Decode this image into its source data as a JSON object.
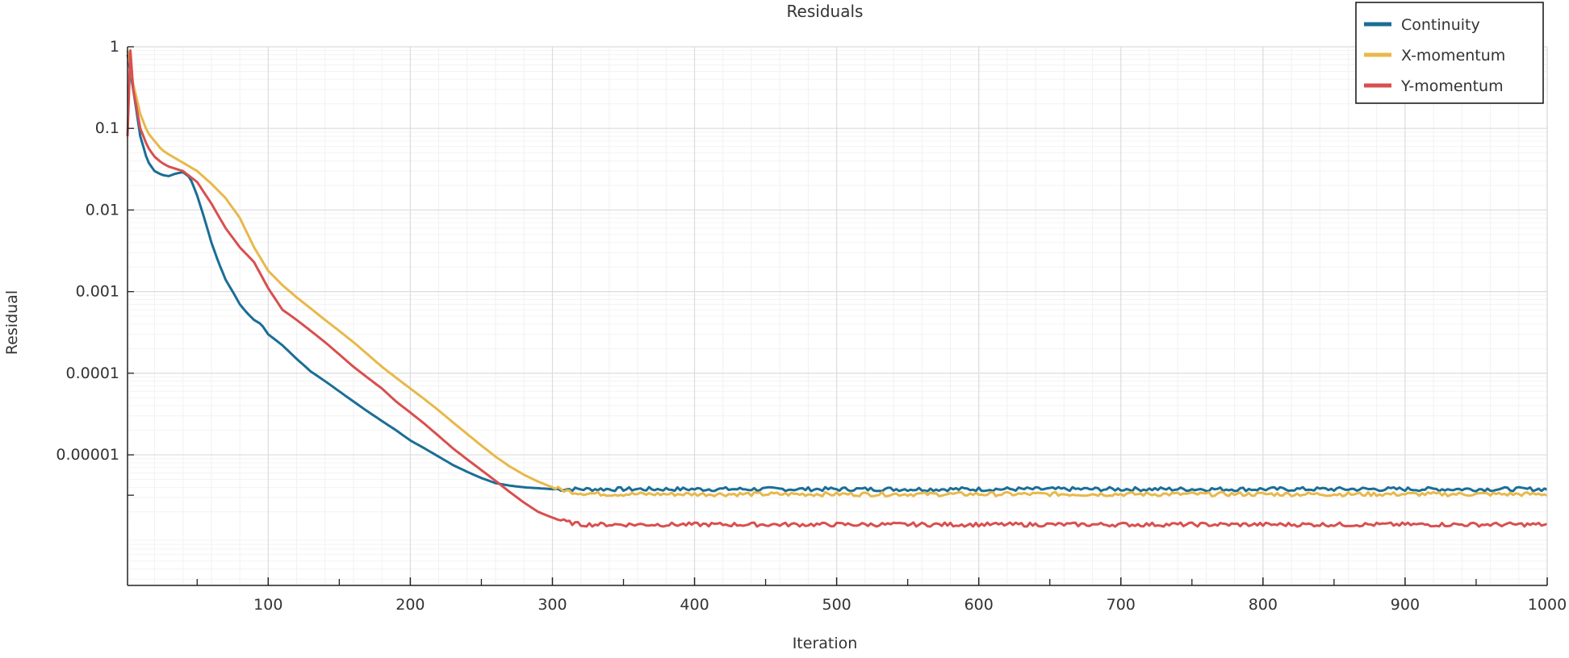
{
  "chart_data": {
    "type": "line",
    "title": "Residuals",
    "xlabel": "Iteration",
    "ylabel": "Residual",
    "xlim": [
      1,
      1000
    ],
    "ylim_log10": [
      -6.6,
      0
    ],
    "yscale": "log",
    "grid": true,
    "legend_position": "top-right",
    "x_ticks": [
      100,
      200,
      300,
      400,
      500,
      600,
      700,
      800,
      900,
      1000
    ],
    "x_tick_labels": [
      "100",
      "200",
      "300",
      "400",
      "500",
      "600",
      "700",
      "800",
      "900",
      "1000"
    ],
    "y_ticks": [
      1,
      0.1,
      0.01,
      0.001,
      0.0001,
      1e-05
    ],
    "y_tick_labels": [
      "1",
      "0.1",
      "0.01",
      "0.001",
      "0.0001",
      "0.00001"
    ],
    "series": [
      {
        "name": "Continuity",
        "color": "#1a6e96",
        "x": [
          1,
          5,
          10,
          15,
          20,
          25,
          30,
          35,
          40,
          45,
          50,
          55,
          60,
          65,
          70,
          75,
          80,
          85,
          90,
          95,
          100,
          110,
          120,
          130,
          140,
          150,
          160,
          170,
          180,
          190,
          200,
          210,
          220,
          230,
          240,
          250,
          260,
          270,
          280,
          290,
          300,
          320,
          340,
          360,
          400,
          450,
          500,
          550,
          600,
          650,
          700,
          750,
          800,
          850,
          900,
          950,
          1000
        ],
        "y": [
          0.8,
          0.3,
          0.08,
          0.04,
          0.03,
          0.027,
          0.026,
          0.028,
          0.029,
          0.025,
          0.015,
          0.008,
          0.004,
          0.0023,
          0.0014,
          0.001,
          0.0007,
          0.00055,
          0.00045,
          0.0004,
          0.0003,
          0.00022,
          0.00015,
          0.000105,
          8e-05,
          6e-05,
          4.5e-05,
          3.4e-05,
          2.6e-05,
          2e-05,
          1.5e-05,
          1.2e-05,
          9.5e-06,
          7.5e-06,
          6.2e-06,
          5.2e-06,
          4.5e-06,
          4.2e-06,
          4e-06,
          3.9e-06,
          3.8e-06,
          3.8e-06,
          3.8e-06,
          3.8e-06,
          3.8e-06,
          3.8e-06,
          3.8e-06,
          3.8e-06,
          3.8e-06,
          3.8e-06,
          3.8e-06,
          3.8e-06,
          3.8e-06,
          3.8e-06,
          3.8e-06,
          3.8e-06,
          3.8e-06
        ]
      },
      {
        "name": "X-momentum",
        "color": "#e8b84a",
        "x": [
          1,
          5,
          10,
          15,
          20,
          25,
          30,
          40,
          50,
          60,
          70,
          80,
          90,
          100,
          110,
          120,
          130,
          140,
          150,
          160,
          170,
          180,
          190,
          200,
          210,
          220,
          230,
          240,
          250,
          260,
          270,
          280,
          290,
          300,
          310,
          320,
          340,
          360,
          400,
          450,
          500,
          550,
          600,
          650,
          700,
          750,
          800,
          850,
          900,
          950,
          1000
        ],
        "y": [
          0.9,
          0.35,
          0.15,
          0.09,
          0.07,
          0.055,
          0.048,
          0.038,
          0.03,
          0.021,
          0.014,
          0.008,
          0.0035,
          0.0018,
          0.0012,
          0.00085,
          0.00062,
          0.00045,
          0.00033,
          0.00024,
          0.00017,
          0.00012,
          8.8e-05,
          6.5e-05,
          4.8e-05,
          3.5e-05,
          2.5e-05,
          1.8e-05,
          1.3e-05,
          9.5e-06,
          7.2e-06,
          5.7e-06,
          4.7e-06,
          4e-06,
          3.6e-06,
          3.4e-06,
          3.3e-06,
          3.3e-06,
          3.3e-06,
          3.3e-06,
          3.3e-06,
          3.3e-06,
          3.3e-06,
          3.3e-06,
          3.3e-06,
          3.3e-06,
          3.3e-06,
          3.3e-06,
          3.3e-06,
          3.3e-06,
          3.3e-06
        ]
      },
      {
        "name": "Y-momentum",
        "color": "#d94f4f",
        "x": [
          1,
          3,
          5,
          10,
          15,
          20,
          25,
          30,
          40,
          50,
          60,
          70,
          80,
          90,
          100,
          110,
          120,
          130,
          140,
          150,
          160,
          170,
          180,
          190,
          200,
          210,
          220,
          230,
          240,
          250,
          260,
          270,
          280,
          290,
          300,
          310,
          320,
          330,
          340,
          360,
          400,
          450,
          500,
          550,
          600,
          650,
          700,
          750,
          800,
          850,
          900,
          950,
          1000
        ],
        "y": [
          0.08,
          0.9,
          0.3,
          0.1,
          0.06,
          0.045,
          0.038,
          0.034,
          0.03,
          0.022,
          0.012,
          0.006,
          0.0035,
          0.0023,
          0.0011,
          0.0006,
          0.00045,
          0.00033,
          0.00024,
          0.00017,
          0.00012,
          8.8e-05,
          6.5e-05,
          4.5e-05,
          3.3e-05,
          2.4e-05,
          1.7e-05,
          1.2e-05,
          8.8e-06,
          6.5e-06,
          4.8e-06,
          3.5e-06,
          2.6e-06,
          2e-06,
          1.7e-06,
          1.5e-06,
          1.4e-06,
          1.4e-06,
          1.4e-06,
          1.4e-06,
          1.4e-06,
          1.4e-06,
          1.4e-06,
          1.4e-06,
          1.4e-06,
          1.4e-06,
          1.4e-06,
          1.4e-06,
          1.4e-06,
          1.4e-06,
          1.4e-06,
          1.4e-06,
          1.4e-06
        ]
      }
    ]
  }
}
